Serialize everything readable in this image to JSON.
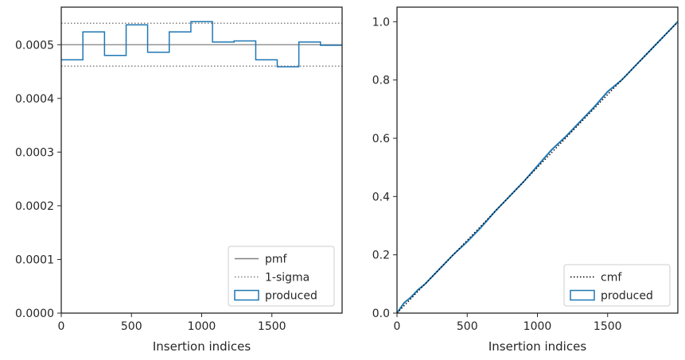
{
  "chart_data": [
    {
      "type": "step",
      "xlabel": "Insertion indices",
      "ylabel": "",
      "xlim": [
        0,
        2000
      ],
      "ylim": [
        0,
        0.00057
      ],
      "xticks": [
        "0",
        "500",
        "1000",
        "1500"
      ],
      "xtick_values": [
        0,
        500,
        1000,
        1500
      ],
      "yticks": [
        "0.0000",
        "0.0001",
        "0.0002",
        "0.0003",
        "0.0004",
        "0.0005"
      ],
      "ytick_values": [
        0,
        0.0001,
        0.0002,
        0.0003,
        0.0004,
        0.0005
      ],
      "pmf": 0.0005,
      "sigma_band": [
        0.00046,
        0.00054
      ],
      "bin_edges": [
        0,
        154,
        308,
        462,
        615,
        769,
        923,
        1077,
        1231,
        1385,
        1538,
        1692,
        1846,
        2000
      ],
      "produced": [
        0.000472,
        0.000524,
        0.00048,
        0.000537,
        0.000486,
        0.000524,
        0.000543,
        0.000505,
        0.000507,
        0.000472,
        0.000459,
        0.000505,
        0.000499
      ],
      "legend": {
        "position": "lower-right",
        "entries": [
          {
            "label": "pmf",
            "style": "solid-line",
            "color": "#808080"
          },
          {
            "label": "1-sigma",
            "style": "dotted-line",
            "color": "#808080"
          },
          {
            "label": "produced",
            "style": "box",
            "color": "#1f77b4"
          }
        ]
      }
    },
    {
      "type": "line",
      "xlabel": "Insertion indices",
      "ylabel": "",
      "xlim": [
        0,
        2000
      ],
      "ylim": [
        0,
        1.05
      ],
      "xticks": [
        "0",
        "500",
        "1000",
        "1500"
      ],
      "xtick_values": [
        0,
        500,
        1000,
        1500
      ],
      "yticks": [
        "0.0",
        "0.2",
        "0.4",
        "0.6",
        "0.8",
        "1.0"
      ],
      "ytick_values": [
        0,
        0.2,
        0.4,
        0.6,
        0.8,
        1.0
      ],
      "cmf": {
        "x": [
          0,
          2000
        ],
        "y": [
          0,
          1
        ]
      },
      "produced": {
        "x": [
          0,
          50,
          100,
          150,
          200,
          300,
          400,
          500,
          600,
          700,
          800,
          900,
          1000,
          1100,
          1200,
          1300,
          1400,
          1500,
          1600,
          1700,
          1800,
          1900,
          2000
        ],
        "y": [
          0,
          0.035,
          0.055,
          0.08,
          0.1,
          0.15,
          0.2,
          0.245,
          0.295,
          0.35,
          0.4,
          0.45,
          0.505,
          0.56,
          0.605,
          0.655,
          0.705,
          0.76,
          0.8,
          0.85,
          0.9,
          0.95,
          1.0
        ]
      },
      "legend": {
        "position": "lower-right",
        "entries": [
          {
            "label": "cmf",
            "style": "dotted-line",
            "color": "#000000"
          },
          {
            "label": "produced",
            "style": "box",
            "color": "#1f77b4"
          }
        ]
      }
    }
  ]
}
